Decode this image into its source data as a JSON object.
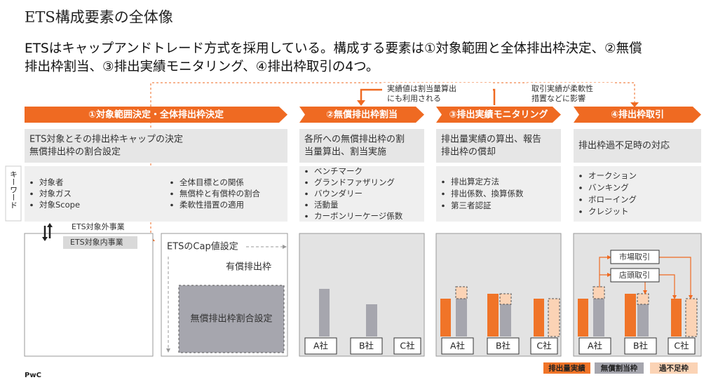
{
  "header": {
    "title": "ETS構成要素の全体像",
    "lead": [
      "ETSはキャップアンドトレード方式を採用している。構成する要素は①対象範囲と全体排出枠決定、②無償",
      "排出枠割当、③排出実績モニタリング、④排出枠取引の4つ。"
    ]
  },
  "callouts": [
    {
      "lines": [
        "実績値は割当量算出",
        "にも利用される"
      ]
    },
    {
      "lines": [
        "取引実績が柔軟性",
        "措置などに影響"
      ]
    }
  ],
  "side_label": "キーワード",
  "stages": [
    {
      "title": "①対象範囲決定・全体排出枠決定",
      "description": [
        "ETS対象とその排出枠キャップの決定",
        "無償排出枠の割合設定"
      ],
      "keywords": [
        "対象者",
        "対象ガス",
        "対象Scope",
        "全体目標との関係",
        "無償枠と有償枠の割合",
        "柔軟性措置の適用"
      ]
    },
    {
      "title": "②無償排出枠割当",
      "description": [
        "各所への無償排出枠の割",
        "当量算出、割当実施"
      ],
      "keywords": [
        "ベンチマーク",
        "グランドファザリング",
        "バウンダリー",
        "活動量",
        "カーボンリーケージ係数"
      ]
    },
    {
      "title": "③排出実績モニタリング",
      "description": [
        "排出量実績の算出、報告",
        "排出枠の償却"
      ],
      "keywords": [
        "排出算定方法",
        "排出係数、換算係数",
        "第三者認証"
      ]
    },
    {
      "title": "④排出枠取引",
      "description": [
        "排出枠過不足時の対応"
      ],
      "keywords": [
        "オークション",
        "バンキング",
        "ボローイング",
        "クレジット"
      ]
    }
  ],
  "panels": {
    "scope": {
      "out": "ETS対象外事業",
      "in": "ETS対象内事業"
    },
    "cap": {
      "title": "ETSのCap値設定",
      "paid": "有償排出枠",
      "free": "無償排出枠割合設定"
    },
    "trade": [
      "市場取引",
      "店頭取引"
    ]
  },
  "companies": [
    "A社",
    "B社",
    "C社"
  ],
  "legend": [
    {
      "label": "排出量実績",
      "color": "#f07428"
    },
    {
      "label": "無償割当枠",
      "color": "#a6a6ae"
    },
    {
      "label": "過不足枠",
      "color": "#fbd3b5"
    }
  ],
  "footer": "PwC"
}
